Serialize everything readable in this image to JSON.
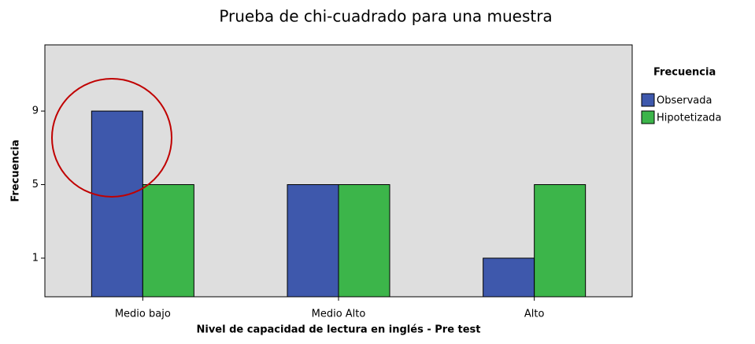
{
  "chart_data": {
    "type": "bar",
    "title": "Prueba de chi-cuadrado para una muestra",
    "xlabel": "Nivel de capacidad de lectura en inglés - Pre test",
    "ylabel": "Frecuencia",
    "legend_title": "Frecuencia",
    "categories": [
      "Medio bajo",
      "Medio Alto",
      "Alto"
    ],
    "series": [
      {
        "name": "Observada",
        "color": "#3e58ac",
        "values": [
          9,
          5,
          1
        ]
      },
      {
        "name": "Hipotetizada",
        "color": "#3cb54a",
        "values": [
          5,
          5,
          5
        ]
      }
    ],
    "ylim": [
      -1.1,
      12.6
    ],
    "yticks": [
      1,
      5,
      9
    ],
    "grid": false,
    "legend": "right"
  }
}
